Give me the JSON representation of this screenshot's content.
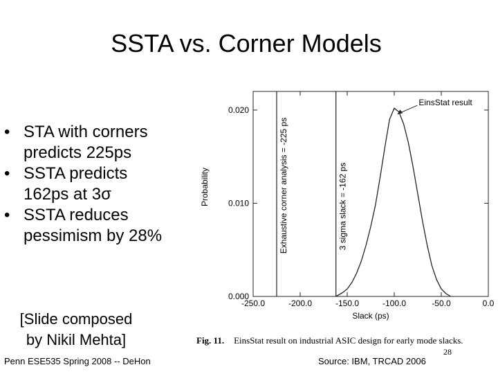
{
  "slide": {
    "title": "SSTA vs. Corner Models",
    "bullets": [
      {
        "line1": "STA with corners",
        "line2": "predicts 225ps"
      },
      {
        "line1": "SSTA predicts",
        "line2": "162ps at 3σ"
      },
      {
        "line1": "SSTA reduces",
        "line2": "pessimism by 28%"
      }
    ],
    "bullet_symbol": "•",
    "credit_line1": "[Slide composed",
    "credit_line2": "by Nikil Mehta]",
    "footer_left": "Penn ESE535 Spring 2008 -- DeHon",
    "footer_right": "Source: IBM, TRCAD 2006",
    "page_number": "28",
    "caption_fig": "Fig. 11.",
    "caption_text": "EinsStat result on industrial ASIC design for early mode slacks."
  },
  "chart_data": {
    "type": "line",
    "xlabel": "Slack (ps)",
    "ylabel": "Probability",
    "xlim": [
      -250,
      0
    ],
    "ylim": [
      0,
      0.022
    ],
    "x_ticks": [
      -250,
      -200,
      -150,
      -100,
      -50,
      0
    ],
    "x_tick_labels": [
      "-250.0",
      "-200.0",
      "-150.0",
      "-100.0",
      "-50.0",
      "0.0"
    ],
    "y_ticks": [
      0,
      0.01,
      0.02
    ],
    "y_tick_labels": [
      "0.000",
      "0.010",
      "0.020"
    ],
    "series": [
      {
        "x": [
          -162,
          -155,
          -150,
          -145,
          -140,
          -135,
          -130,
          -125,
          -120,
          -115,
          -110,
          -105,
          -100,
          -95,
          -90,
          -85,
          -80,
          -75,
          -70,
          -65,
          -60,
          -55,
          -50,
          -45,
          -40
        ],
        "values": [
          0.0,
          0.0004,
          0.0008,
          0.0015,
          0.0025,
          0.0038,
          0.0055,
          0.0075,
          0.0098,
          0.0128,
          0.016,
          0.019,
          0.0202,
          0.0198,
          0.0185,
          0.0165,
          0.0139,
          0.011,
          0.0081,
          0.0055,
          0.0033,
          0.0018,
          0.0008,
          0.0003,
          0.0
        ]
      }
    ],
    "annotations": [
      {
        "text": "EinsStat result",
        "x": -99,
        "y": 0.0202
      },
      {
        "text": "Exhaustive corner analysis = -225 ps",
        "x": -225
      },
      {
        "text": "3 sigma slack = -162 ps",
        "x": -162
      }
    ],
    "grid": false
  }
}
